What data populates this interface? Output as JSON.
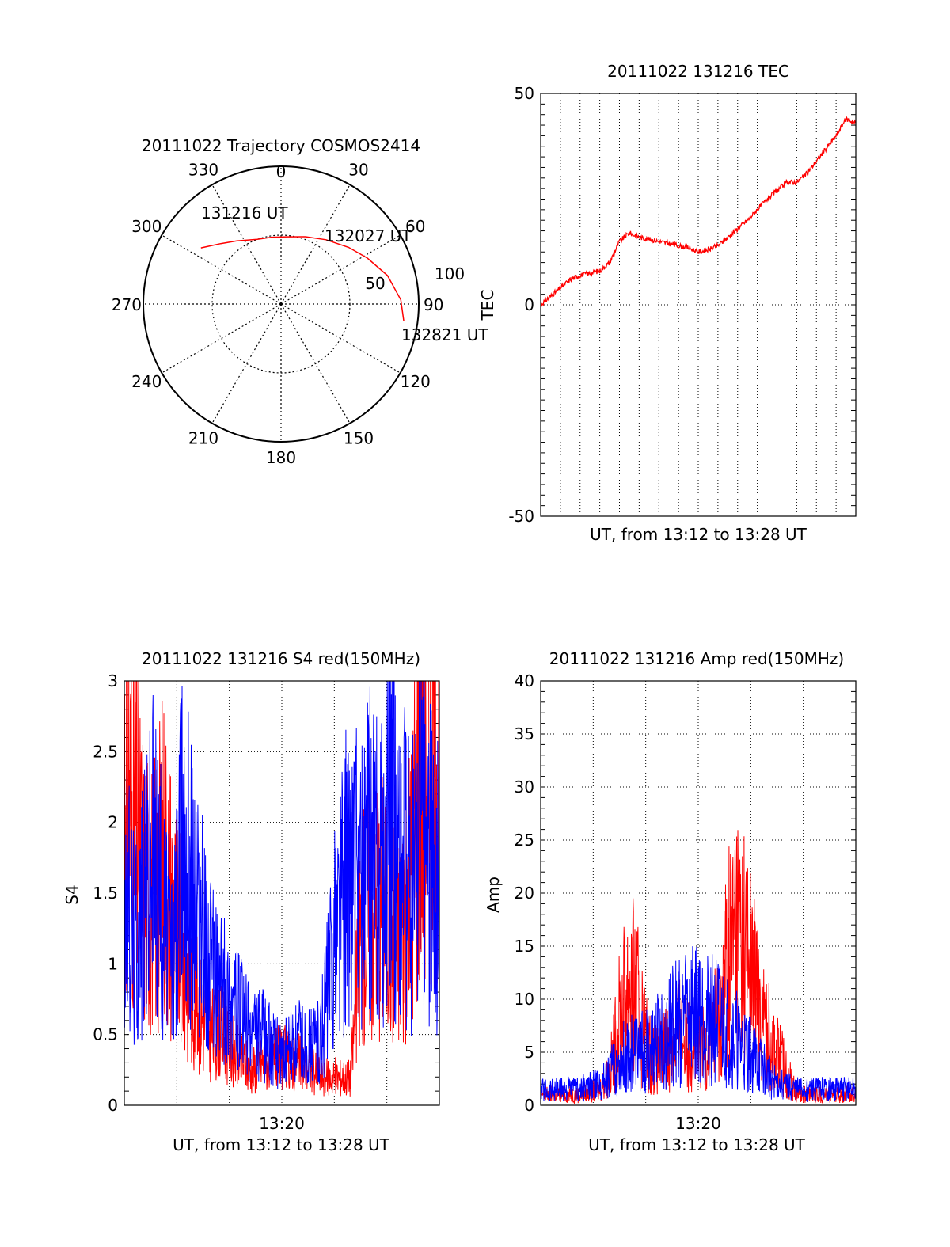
{
  "chart_data": [
    {
      "type": "scatter",
      "subtype": "polar-trajectory",
      "title": "20111022 Trajectory COSMOS2414",
      "angle_ticks": [
        "0",
        "30",
        "60",
        "90",
        "120",
        "150",
        "180",
        "210",
        "240",
        "270",
        "300",
        "330"
      ],
      "radius_labels": [
        "50",
        "100"
      ],
      "radius_range": [
        0,
        100
      ],
      "line_color": "#ff0000",
      "trajectory": [
        {
          "az": 305,
          "zen": 71
        },
        {
          "az": 315,
          "zen": 62
        },
        {
          "az": 325,
          "zen": 56
        },
        {
          "az": 340,
          "zen": 50
        },
        {
          "az": 352,
          "zen": 49
        },
        {
          "az": 5,
          "zen": 49
        },
        {
          "az": 20,
          "zen": 52
        },
        {
          "az": 35,
          "zen": 57
        },
        {
          "az": 50,
          "zen": 64
        },
        {
          "az": 62,
          "zen": 71
        },
        {
          "az": 75,
          "zen": 80
        },
        {
          "az": 88,
          "zen": 87
        },
        {
          "az": 98,
          "zen": 90
        }
      ],
      "annotations": [
        {
          "text": "131216 UT",
          "az": 316,
          "zen": 72
        },
        {
          "text": "132027 UT",
          "az": 60,
          "zen": 56
        },
        {
          "text": "132821 UT",
          "az": 101,
          "zen": 97
        }
      ]
    },
    {
      "type": "line",
      "title": "20111022 131216 TEC",
      "xlabel": "UT, from 13:12 to 13:28 UT",
      "ylabel": "TEC",
      "ylim": [
        -50,
        50
      ],
      "xlim": [
        0,
        16
      ],
      "y_ticks": [
        "50",
        "0",
        "-50"
      ],
      "grid": true,
      "series": [
        {
          "color": "#ff0000",
          "x": [
            0,
            0.5,
            1,
            1.5,
            2,
            2.5,
            3,
            3.5,
            4,
            4.5,
            5,
            5.5,
            6,
            6.5,
            7,
            7.5,
            8,
            8.5,
            9,
            9.5,
            10,
            10.5,
            11,
            11.5,
            12,
            12.5,
            13,
            13.5,
            14,
            14.5,
            15,
            15.5,
            16
          ],
          "y": [
            0,
            2,
            4,
            6,
            7,
            7.5,
            8,
            10,
            15,
            17,
            16,
            15.5,
            15,
            14.5,
            14,
            13.5,
            12.5,
            13,
            14,
            16,
            18,
            20,
            22.5,
            25,
            27,
            29,
            29,
            31,
            34,
            37,
            40,
            44,
            43
          ]
        }
      ]
    },
    {
      "type": "line",
      "title": "20111022 131216 S4 red(150MHz)",
      "xlabel": "UT, from 13:12 to 13:28 UT",
      "ylabel": "S4",
      "ylim": [
        0,
        3
      ],
      "xlim": [
        0,
        16
      ],
      "y_ticks": [
        "0",
        "0.5",
        "1",
        "1.5",
        "2",
        "2.5",
        "3"
      ],
      "x_ticks": [
        {
          "value": 8,
          "label": "13:20"
        }
      ],
      "grid": true,
      "series": [
        {
          "color": "#ff0000",
          "x": [
            0,
            0.5,
            1,
            1.5,
            2,
            2.5,
            3,
            3.5,
            4,
            4.5,
            5,
            5.5,
            6,
            6.5,
            7,
            7.5,
            8,
            8.5,
            9,
            9.5,
            10,
            10.5,
            11,
            11.5,
            12,
            12.5,
            13,
            13.5,
            14,
            14.5,
            15,
            15.5,
            16
          ],
          "y": [
            2.5,
            2.0,
            1.6,
            1.5,
            1.8,
            1.4,
            1.0,
            0.8,
            0.6,
            0.5,
            0.5,
            0.4,
            0.3,
            0.25,
            0.3,
            0.3,
            0.35,
            0.3,
            0.3,
            0.25,
            0.2,
            0.2,
            0.2,
            0.2,
            1.2,
            1.4,
            1.5,
            1.3,
            1.2,
            1.5,
            2.5,
            2.8,
            2.5
          ]
        },
        {
          "color": "#0000ff",
          "x": [
            0,
            0.5,
            1,
            1.5,
            2,
            2.5,
            3,
            3.5,
            4,
            4.5,
            5,
            5.5,
            6,
            6.5,
            7,
            7.5,
            8,
            8.5,
            9,
            9.5,
            10,
            10.5,
            11,
            11.5,
            12,
            12.5,
            13,
            13.5,
            14,
            14.5,
            15,
            15.5,
            16
          ],
          "y": [
            1.5,
            1.2,
            1.4,
            1.8,
            1.3,
            1.0,
            2.0,
            1.5,
            1.2,
            0.9,
            0.8,
            0.7,
            0.6,
            0.5,
            0.5,
            0.4,
            0.35,
            0.4,
            0.45,
            0.4,
            0.5,
            1.0,
            1.5,
            1.7,
            1.5,
            1.8,
            1.6,
            2.0,
            1.8,
            1.5,
            2.0,
            1.8,
            1.5
          ]
        }
      ]
    },
    {
      "type": "line",
      "title": "20111022 131216 Amp red(150MHz)",
      "xlabel": "UT, from 13:12 to 13:28 UT",
      "ylabel": "Amp",
      "ylim": [
        0,
        40
      ],
      "xlim": [
        0,
        16
      ],
      "y_ticks": [
        "0",
        "5",
        "10",
        "15",
        "20",
        "25",
        "30",
        "35",
        "40"
      ],
      "x_ticks": [
        {
          "value": 8,
          "label": "13:20"
        }
      ],
      "grid": true,
      "series": [
        {
          "color": "#ff0000",
          "x": [
            0,
            1,
            2,
            3,
            3.5,
            4,
            4.5,
            5,
            5.5,
            6,
            6.5,
            7,
            7.5,
            8,
            8.5,
            9,
            9.5,
            10,
            10.5,
            11,
            11.5,
            12,
            13,
            14,
            15,
            16
          ],
          "y": [
            1,
            1,
            1,
            1.5,
            3,
            8,
            12,
            9,
            5,
            4,
            6,
            7,
            6,
            5,
            6,
            8,
            14,
            17,
            14,
            10,
            7,
            5,
            1,
            1,
            1,
            1
          ]
        },
        {
          "color": "#0000ff",
          "x": [
            0,
            1,
            2,
            3,
            3.5,
            4,
            4.5,
            5,
            5.5,
            6,
            6.5,
            7,
            7.5,
            8,
            8.5,
            9,
            9.5,
            10,
            10.5,
            11,
            11.5,
            12,
            13,
            14,
            15,
            16
          ],
          "y": [
            1.5,
            1.5,
            1.5,
            2,
            3,
            4,
            5,
            5,
            5,
            6,
            7,
            8,
            9,
            9,
            8,
            8,
            7,
            6,
            5,
            4,
            3,
            2,
            1.5,
            1.5,
            1.5,
            1.5
          ]
        }
      ]
    }
  ]
}
